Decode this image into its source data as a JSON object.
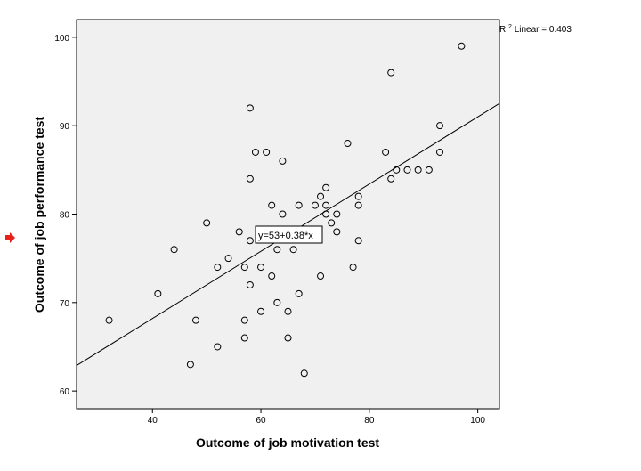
{
  "chart_data": {
    "type": "scatter",
    "xlabel": "Outcome of job motivation test",
    "ylabel": "Outcome of job performance test",
    "xlim": [
      26,
      104
    ],
    "ylim": [
      58,
      102
    ],
    "xticks": [
      40,
      60,
      80,
      100
    ],
    "yticks": [
      60,
      70,
      80,
      90,
      100
    ],
    "grid": false,
    "background_color": "#f0f0f0",
    "points": [
      {
        "x": 32,
        "y": 68
      },
      {
        "x": 41,
        "y": 71
      },
      {
        "x": 44,
        "y": 76
      },
      {
        "x": 47,
        "y": 63
      },
      {
        "x": 48,
        "y": 68
      },
      {
        "x": 50,
        "y": 79
      },
      {
        "x": 52,
        "y": 74
      },
      {
        "x": 52,
        "y": 65
      },
      {
        "x": 54,
        "y": 75
      },
      {
        "x": 56,
        "y": 78
      },
      {
        "x": 57,
        "y": 74
      },
      {
        "x": 57,
        "y": 68
      },
      {
        "x": 57,
        "y": 66
      },
      {
        "x": 58,
        "y": 92
      },
      {
        "x": 58,
        "y": 84
      },
      {
        "x": 58,
        "y": 77
      },
      {
        "x": 58,
        "y": 72
      },
      {
        "x": 59,
        "y": 87
      },
      {
        "x": 60,
        "y": 74
      },
      {
        "x": 60,
        "y": 69
      },
      {
        "x": 61,
        "y": 87
      },
      {
        "x": 62,
        "y": 81
      },
      {
        "x": 62,
        "y": 73
      },
      {
        "x": 63,
        "y": 76
      },
      {
        "x": 63,
        "y": 70
      },
      {
        "x": 64,
        "y": 86
      },
      {
        "x": 64,
        "y": 80
      },
      {
        "x": 65,
        "y": 69
      },
      {
        "x": 65,
        "y": 66
      },
      {
        "x": 66,
        "y": 76
      },
      {
        "x": 67,
        "y": 81
      },
      {
        "x": 67,
        "y": 71
      },
      {
        "x": 68,
        "y": 62
      },
      {
        "x": 70,
        "y": 81
      },
      {
        "x": 71,
        "y": 82
      },
      {
        "x": 71,
        "y": 73
      },
      {
        "x": 72,
        "y": 83
      },
      {
        "x": 72,
        "y": 81
      },
      {
        "x": 72,
        "y": 80
      },
      {
        "x": 73,
        "y": 79
      },
      {
        "x": 74,
        "y": 80
      },
      {
        "x": 74,
        "y": 78
      },
      {
        "x": 76,
        "y": 88
      },
      {
        "x": 77,
        "y": 74
      },
      {
        "x": 78,
        "y": 82
      },
      {
        "x": 78,
        "y": 81
      },
      {
        "x": 78,
        "y": 77
      },
      {
        "x": 83,
        "y": 87
      },
      {
        "x": 84,
        "y": 96
      },
      {
        "x": 84,
        "y": 84
      },
      {
        "x": 85,
        "y": 85
      },
      {
        "x": 87,
        "y": 85
      },
      {
        "x": 89,
        "y": 85
      },
      {
        "x": 91,
        "y": 85
      },
      {
        "x": 93,
        "y": 90
      },
      {
        "x": 93,
        "y": 87
      },
      {
        "x": 97,
        "y": 99
      }
    ],
    "fit_line": {
      "intercept": 53,
      "slope": 0.38
    },
    "equation_label": "y=53+0.38*x",
    "r2": {
      "prefix": "R",
      "superscript": "2",
      "text": " Linear = 0.403"
    },
    "arrow_color": "#e8221a"
  }
}
